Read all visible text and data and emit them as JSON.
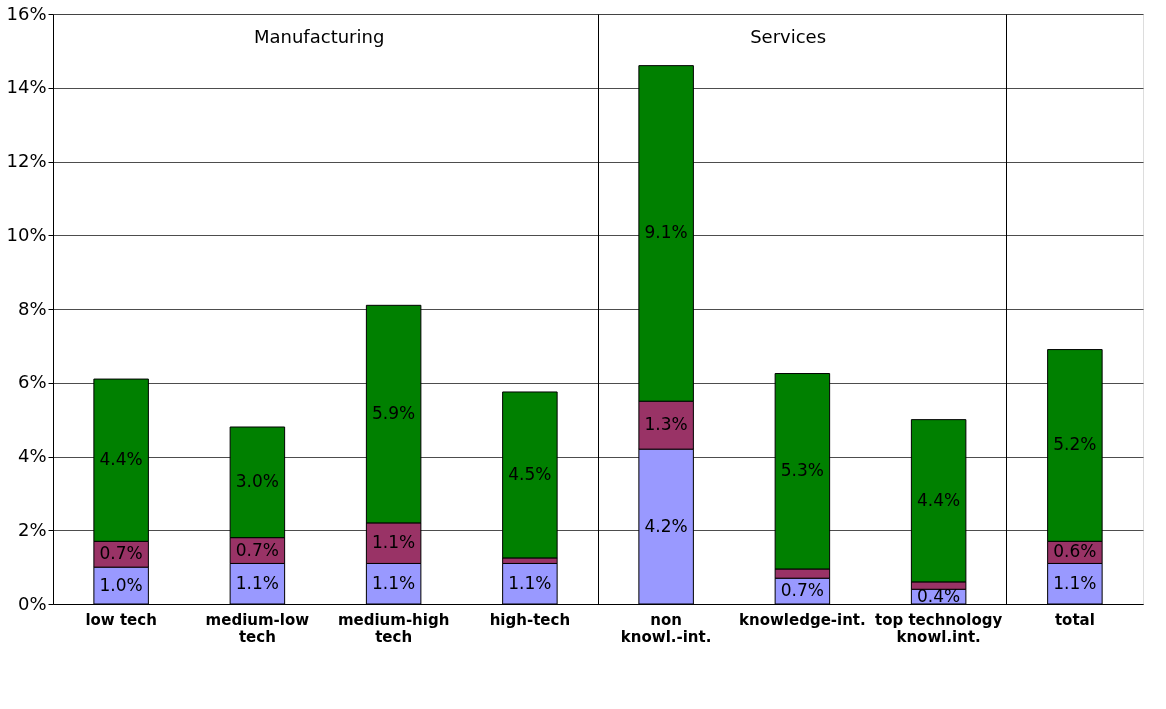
{
  "chart_data": {
    "type": "bar",
    "stacked": true,
    "categories": [
      "low tech",
      "medium-low tech",
      "medium-high tech",
      "high-tech",
      "non knowl.-int.",
      "knowledge-int.",
      "top technology knowl.int.",
      "total"
    ],
    "series": [
      {
        "color": "#9999ff",
        "values": [
          1.0,
          1.1,
          1.1,
          1.1,
          4.2,
          0.7,
          0.4,
          1.1
        ],
        "value_labels": [
          "1.0%",
          "1.1%",
          "1.1%",
          "1.1%",
          "4.2%",
          "0.7%",
          "0.4%",
          "1.1%"
        ]
      },
      {
        "color": "#993366",
        "values": [
          0.7,
          0.7,
          1.1,
          0.15,
          1.3,
          0.25,
          0.2,
          0.6
        ],
        "value_labels": [
          "0.7%",
          "0.7%",
          "1.1%",
          null,
          "1.3%",
          null,
          null,
          "0.6%"
        ]
      },
      {
        "color": "#008000",
        "values": [
          4.4,
          3.0,
          5.9,
          4.5,
          9.1,
          5.3,
          4.4,
          5.2
        ],
        "value_labels": [
          "4.4%",
          "3.0%",
          "5.9%",
          "4.5%",
          "9.1%",
          "5.3%",
          "4.4%",
          "5.2%"
        ]
      }
    ],
    "ylim": [
      0,
      16
    ],
    "yticks": [
      {
        "value": 0,
        "label": "0%"
      },
      {
        "value": 2,
        "label": "2%"
      },
      {
        "value": 4,
        "label": "4%"
      },
      {
        "value": 6,
        "label": "6%"
      },
      {
        "value": 8,
        "label": "8%"
      },
      {
        "value": 10,
        "label": "10%"
      },
      {
        "value": 12,
        "label": "12%"
      },
      {
        "value": 14,
        "label": "14%"
      },
      {
        "value": 16,
        "label": "16%"
      }
    ],
    "grid": "y",
    "annotations": [
      "Manufacturing",
      "Services"
    ]
  }
}
